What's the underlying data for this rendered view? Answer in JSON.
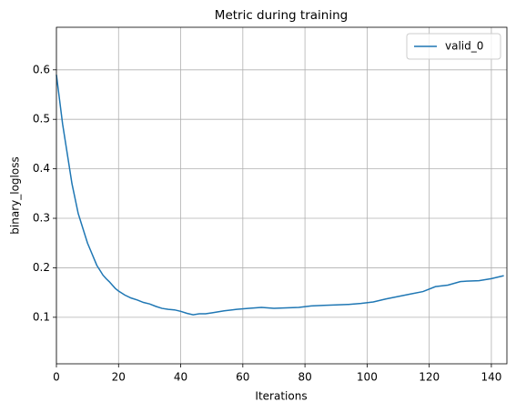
{
  "chart_data": {
    "type": "line",
    "title": "Metric during training",
    "x_label": "Iterations",
    "y_label": "binary_logloss",
    "x": [
      0,
      1,
      2,
      3,
      4,
      5,
      6,
      7,
      8,
      9,
      10,
      11,
      12,
      13,
      14,
      15,
      16,
      17,
      18,
      19,
      20,
      22,
      24,
      26,
      28,
      30,
      32,
      34,
      36,
      38,
      40,
      42,
      44,
      46,
      48,
      50,
      54,
      58,
      62,
      66,
      70,
      74,
      78,
      82,
      86,
      90,
      94,
      98,
      102,
      106,
      110,
      114,
      118,
      122,
      126,
      130,
      132,
      136,
      140,
      144
    ],
    "series": [
      {
        "name": "valid_0",
        "color": "#1f77b4",
        "values": [
          0.59,
          0.54,
          0.49,
          0.45,
          0.41,
          0.37,
          0.34,
          0.31,
          0.29,
          0.27,
          0.25,
          0.235,
          0.22,
          0.205,
          0.195,
          0.185,
          0.178,
          0.172,
          0.165,
          0.158,
          0.153,
          0.145,
          0.139,
          0.135,
          0.13,
          0.127,
          0.122,
          0.118,
          0.116,
          0.115,
          0.112,
          0.108,
          0.105,
          0.107,
          0.107,
          0.109,
          0.113,
          0.116,
          0.118,
          0.12,
          0.118,
          0.119,
          0.12,
          0.123,
          0.124,
          0.125,
          0.126,
          0.128,
          0.131,
          0.137,
          0.142,
          0.147,
          0.152,
          0.162,
          0.165,
          0.172,
          0.173,
          0.174,
          0.178,
          0.184
        ]
      }
    ],
    "xlim": [
      0,
      145
    ],
    "ylim": [
      0.006,
      0.686
    ],
    "xticks": [
      0,
      20,
      40,
      60,
      80,
      100,
      120,
      140
    ],
    "yticks": [
      0.1,
      0.2,
      0.3,
      0.4,
      0.5,
      0.6
    ],
    "grid": true,
    "legend": "upper right"
  }
}
